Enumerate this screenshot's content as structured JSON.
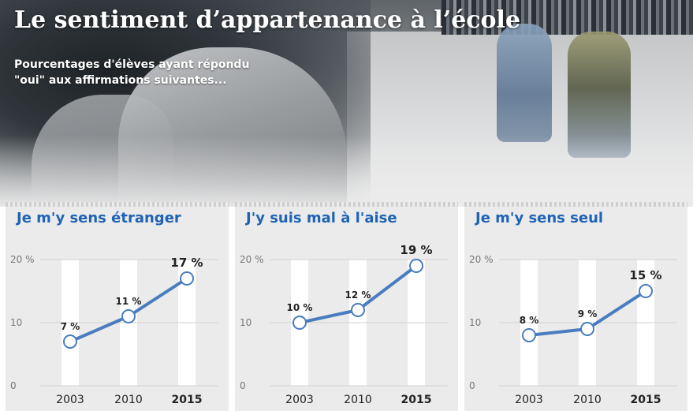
{
  "header": {
    "title": "Le sentiment d’appartenance à l’école",
    "subtitle": "Pourcentages d'élèves ayant répondu \"oui\" aux affirmations suivantes..."
  },
  "colors": {
    "line": "#4a7cc0",
    "title_blue": "#1f63b4",
    "panel_bg": "#ebebeb",
    "column": "#ffffff"
  },
  "chart_data": [
    {
      "type": "line",
      "title": "Je m'y sens étranger",
      "x": [
        "2003",
        "2010",
        "2015"
      ],
      "values": [
        7,
        11,
        17
      ],
      "data_labels": [
        "7 %",
        "11 %",
        "17 %"
      ],
      "yticks": [
        "0",
        "10",
        "20 %"
      ],
      "ylim": [
        0,
        20
      ]
    },
    {
      "type": "line",
      "title": "J'y suis mal à l'aise",
      "x": [
        "2003",
        "2010",
        "2015"
      ],
      "values": [
        10,
        12,
        19
      ],
      "data_labels": [
        "10 %",
        "12 %",
        "19 %"
      ],
      "yticks": [
        "0",
        "10",
        "20 %"
      ],
      "ylim": [
        0,
        20
      ]
    },
    {
      "type": "line",
      "title": "Je m'y sens seul",
      "x": [
        "2003",
        "2010",
        "2015"
      ],
      "values": [
        8,
        9,
        15
      ],
      "data_labels": [
        "8 %",
        "9 %",
        "15 %"
      ],
      "yticks": [
        "0",
        "10",
        "20 %"
      ],
      "ylim": [
        0,
        20
      ]
    }
  ]
}
